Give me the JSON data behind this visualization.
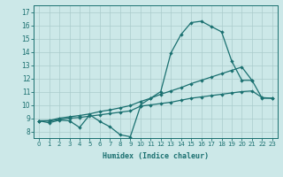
{
  "xlabel": "Humidex (Indice chaleur)",
  "bg_color": "#cce8e8",
  "grid_color": "#aacccc",
  "line_color": "#1a7070",
  "xlim": [
    -0.5,
    23.5
  ],
  "ylim": [
    7.5,
    17.5
  ],
  "line1_x": [
    0,
    1,
    2,
    3,
    4,
    5,
    6,
    7,
    8,
    9,
    10
  ],
  "line1_y": [
    8.8,
    8.65,
    8.85,
    8.8,
    8.3,
    9.25,
    8.75,
    8.35,
    7.75,
    7.6,
    9.9
  ],
  "line2_x": [
    0,
    1,
    2,
    3,
    4,
    5,
    6,
    7,
    8,
    9,
    10,
    11,
    12,
    13,
    14,
    15,
    16,
    17,
    18,
    19,
    20,
    21,
    22,
    23
  ],
  "line2_y": [
    8.8,
    8.78,
    8.9,
    9.0,
    9.05,
    9.15,
    9.25,
    9.35,
    9.45,
    9.55,
    9.9,
    10.0,
    10.1,
    10.2,
    10.35,
    10.5,
    10.6,
    10.7,
    10.8,
    10.9,
    11.0,
    11.05,
    10.55,
    10.5
  ],
  "line3_x": [
    0,
    1,
    2,
    3,
    4,
    5,
    6,
    7,
    8,
    9,
    10,
    11,
    12,
    13,
    14,
    15,
    16,
    17,
    18,
    19,
    20,
    21
  ],
  "line3_y": [
    8.8,
    8.82,
    9.0,
    9.1,
    9.2,
    9.32,
    9.5,
    9.62,
    9.78,
    9.95,
    10.25,
    10.5,
    10.8,
    11.05,
    11.3,
    11.6,
    11.85,
    12.1,
    12.35,
    12.6,
    12.85,
    11.85
  ],
  "line4_x": [
    10,
    11,
    12,
    13,
    14,
    15,
    16,
    17,
    18,
    19,
    20,
    21,
    22,
    23
  ],
  "line4_y": [
    10.0,
    10.5,
    11.0,
    13.9,
    15.3,
    16.2,
    16.3,
    15.9,
    15.5,
    13.3,
    11.85,
    11.85,
    10.5,
    10.5
  ]
}
